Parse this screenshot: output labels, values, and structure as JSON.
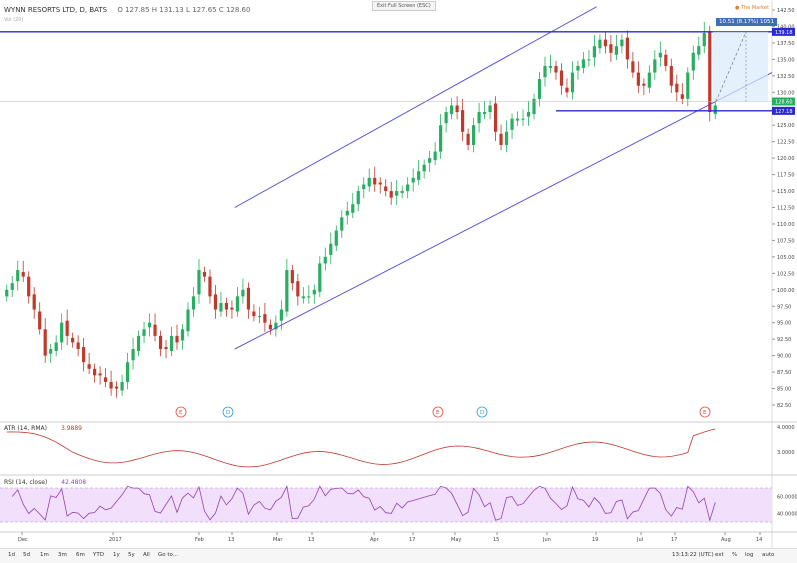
{
  "header": {
    "symbol": "WYNN RESORTS LTD, D, BATS",
    "ohlc": "O 127.85  H 131.13  L 127.65  C 128.60",
    "sub": "Vol (20)",
    "exit_fullscreen": "Exit Full Screen (ESC)"
  },
  "colors": {
    "up": "#27ae60",
    "down": "#c0392b",
    "channel": "#4b48d6",
    "hline": "#2a2ad0",
    "atr": "#c0392b",
    "rsi": "#8e44ad",
    "rsi_band": "#f2dffb"
  },
  "price_axis": {
    "ticks": [
      "142.50",
      "140.00",
      "137.50",
      "135.00",
      "132.50",
      "130.00",
      "127.50",
      "125.00",
      "122.50",
      "120.00",
      "117.50",
      "115.00",
      "112.50",
      "110.00",
      "107.50",
      "105.00",
      "102.50",
      "100.00",
      "97.50",
      "95.00",
      "92.50",
      "90.00",
      "87.50",
      "85.00",
      "82.50"
    ],
    "badges": [
      {
        "label": "139.18",
        "color": "#2a2ad0"
      },
      {
        "label": "128.60",
        "color": "#27ae60"
      },
      {
        "label": "127.18",
        "color": "#2a2ad0"
      }
    ]
  },
  "projection": {
    "label": "10.51 (8.17%) 1051",
    "marker": "The Market"
  },
  "events": [
    {
      "label": "E",
      "kind": "earnings"
    },
    {
      "label": "D",
      "kind": "dividend"
    },
    {
      "label": "E",
      "kind": "earnings"
    },
    {
      "label": "D",
      "kind": "dividend"
    },
    {
      "label": "E",
      "kind": "earnings"
    }
  ],
  "atr": {
    "label": "ATR (14, RMA)",
    "value": "3.9889",
    "ticks": [
      "4.0000",
      "3.0000"
    ]
  },
  "rsi": {
    "label": "RSI (14, close)",
    "value": "42.4808",
    "ticks": [
      "60.0000",
      "40.0000"
    ]
  },
  "time_axis": [
    "Dec",
    "2017",
    "Feb",
    "13",
    "Mar",
    "13",
    "Apr",
    "17",
    "May",
    "15",
    "Jun",
    "19",
    "Jul",
    "17",
    "Aug",
    "14"
  ],
  "toolbar": {
    "ranges": [
      "1d",
      "5d",
      "1m",
      "3m",
      "6m",
      "YTD",
      "1y",
      "5y",
      "All",
      "Go to..."
    ],
    "clock": "13:13:22 (UTC)",
    "opts": [
      "ext",
      "%",
      "log",
      "auto"
    ]
  },
  "chart_data": {
    "type": "candlestick",
    "symbol": "WYNN RESORTS LTD",
    "interval": "D",
    "price_range": [
      80,
      143
    ],
    "candles_close": [
      100,
      101,
      103,
      102,
      99,
      97,
      94,
      90,
      91,
      92,
      95,
      93,
      92,
      91,
      89,
      88,
      87,
      87,
      86,
      85,
      85,
      86,
      89,
      91,
      93,
      94,
      95,
      93,
      91,
      91,
      93,
      92,
      94,
      97,
      99,
      103,
      102,
      99,
      97,
      98,
      97,
      97,
      99,
      100,
      97,
      96,
      96,
      95,
      94,
      95,
      97,
      103,
      101,
      99,
      99,
      99,
      100,
      104,
      105,
      107,
      109,
      111,
      112,
      113,
      115,
      116,
      117,
      116,
      116,
      115,
      114,
      115,
      115,
      116,
      117,
      118,
      119,
      120,
      121,
      125,
      127,
      128,
      127,
      124,
      122,
      125,
      127,
      127,
      128,
      124,
      122,
      124,
      126,
      126,
      126,
      127,
      129,
      132,
      134,
      134,
      133,
      131,
      130,
      133,
      134,
      135,
      135,
      137,
      138,
      137,
      136,
      137,
      138,
      135,
      133,
      131,
      131,
      133,
      135,
      136,
      134,
      131,
      130,
      129,
      133,
      136,
      137,
      139,
      127,
      128
    ],
    "channel": {
      "upper": [
        [
          0.05,
          112.5
        ],
        [
          0.83,
          143
        ]
      ],
      "lower": [
        [
          0.05,
          91
        ],
        [
          0.97,
          133
        ]
      ]
    },
    "horizontal_levels": [
      139.18,
      127.18
    ],
    "last_close": 128.6
  }
}
